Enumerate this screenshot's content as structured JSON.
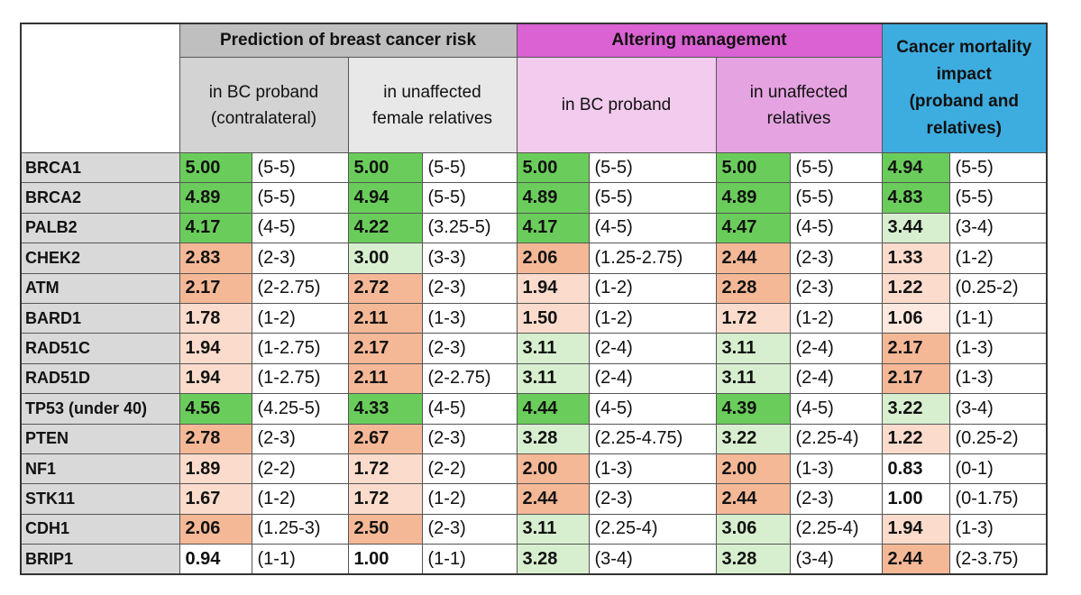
{
  "header": {
    "groups": [
      {
        "title": "Prediction of breast cancer risk",
        "subgroups": [
          {
            "lines": [
              "in BC proband",
              "(contralateral)"
            ]
          },
          {
            "lines": [
              "in unaffected",
              "female relatives"
            ]
          }
        ]
      },
      {
        "title": "Altering management",
        "subgroups": [
          {
            "lines": [
              "in BC proband"
            ]
          },
          {
            "lines": [
              "in unaffected",
              "relatives"
            ]
          }
        ]
      }
    ],
    "mortality": {
      "lines": [
        "Cancer mortality",
        "impact",
        "(proband and",
        "relatives)"
      ]
    }
  },
  "table": {
    "rows": [
      {
        "gene": "BRCA1",
        "values": [
          "5.00",
          "5.00",
          "5.00",
          "5.00",
          "4.94"
        ],
        "ranges": [
          "(5-5)",
          "(5-5)",
          "(5-5)",
          "(5-5)",
          "(5-5)"
        ],
        "colors": [
          "#6acd5b",
          "#6acd5b",
          "#6acd5b",
          "#6acd5b",
          "#6acd5b"
        ]
      },
      {
        "gene": "BRCA2",
        "values": [
          "4.89",
          "4.94",
          "4.89",
          "4.89",
          "4.83"
        ],
        "ranges": [
          "(5-5)",
          "(5-5)",
          "(5-5)",
          "(5-5)",
          "(5-5)"
        ],
        "colors": [
          "#6acd5b",
          "#6acd5b",
          "#6acd5b",
          "#6acd5b",
          "#6acd5b"
        ]
      },
      {
        "gene": "PALB2",
        "values": [
          "4.17",
          "4.22",
          "4.17",
          "4.47",
          "3.44"
        ],
        "ranges": [
          "(4-5)",
          "(3.25-5)",
          "(4-5)",
          "(4-5)",
          "(3-4)"
        ],
        "colors": [
          "#6acd5b",
          "#6acd5b",
          "#6acd5b",
          "#6acd5b",
          "#d7efcf"
        ]
      },
      {
        "gene": "CHEK2",
        "values": [
          "2.83",
          "3.00",
          "2.06",
          "2.44",
          "1.33"
        ],
        "ranges": [
          "(2-3)",
          "(3-3)",
          "(1.25-2.75)",
          "(2-3)",
          "(1-2)"
        ],
        "colors": [
          "#f5b896",
          "#d7efcf",
          "#f5b896",
          "#f5b896",
          "#fbdccc"
        ]
      },
      {
        "gene": "ATM",
        "values": [
          "2.17",
          "2.72",
          "1.94",
          "2.28",
          "1.22"
        ],
        "ranges": [
          "(2-2.75)",
          "(2-3)",
          "(1-2)",
          "(2-3)",
          "(0.25-2)"
        ],
        "colors": [
          "#f5b896",
          "#f5b896",
          "#fbdccc",
          "#f5b896",
          "#fbdccc"
        ]
      },
      {
        "gene": "BARD1",
        "values": [
          "1.78",
          "2.11",
          "1.50",
          "1.72",
          "1.06"
        ],
        "ranges": [
          "(1-2)",
          "(1-3)",
          "(1-2)",
          "(1-2)",
          "(1-1)"
        ],
        "colors": [
          "#fbdccc",
          "#f5b896",
          "#fbdccc",
          "#fbdccc",
          "#fde9df"
        ]
      },
      {
        "gene": "RAD51C",
        "values": [
          "1.94",
          "2.17",
          "3.11",
          "3.11",
          "2.17"
        ],
        "ranges": [
          "(1-2.75)",
          "(2-3)",
          "(2-4)",
          "(2-4)",
          "(1-3)"
        ],
        "colors": [
          "#fbdccc",
          "#f5b896",
          "#d7efcf",
          "#d7efcf",
          "#f5b896"
        ]
      },
      {
        "gene": "RAD51D",
        "values": [
          "1.94",
          "2.11",
          "3.11",
          "3.11",
          "2.17"
        ],
        "ranges": [
          "(1-2.75)",
          "(2-2.75)",
          "(2-4)",
          "(2-4)",
          "(1-3)"
        ],
        "colors": [
          "#fbdccc",
          "#f5b896",
          "#d7efcf",
          "#d7efcf",
          "#f5b896"
        ]
      },
      {
        "gene": "TP53 (under 40)",
        "values": [
          "4.56",
          "4.33",
          "4.44",
          "4.39",
          "3.22"
        ],
        "ranges": [
          "(4.25-5)",
          "(4-5)",
          "(4-5)",
          "(4-5)",
          "(3-4)"
        ],
        "colors": [
          "#6acd5b",
          "#6acd5b",
          "#6acd5b",
          "#6acd5b",
          "#d7efcf"
        ]
      },
      {
        "gene": "PTEN",
        "values": [
          "2.78",
          "2.67",
          "3.28",
          "3.22",
          "1.22"
        ],
        "ranges": [
          "(2-3)",
          "(2-3)",
          "(2.25-4.75)",
          "(2.25-4)",
          "(0.25-2)"
        ],
        "colors": [
          "#f5b896",
          "#f5b896",
          "#d7efcf",
          "#d7efcf",
          "#fbdccc"
        ]
      },
      {
        "gene": "NF1",
        "values": [
          "1.89",
          "1.72",
          "2.00",
          "2.00",
          "0.83"
        ],
        "ranges": [
          "(2-2)",
          "(2-2)",
          "(1-3)",
          "(1-3)",
          "(0-1)"
        ],
        "colors": [
          "#fbdccc",
          "#fbdccc",
          "#f5b896",
          "#f5b896",
          "#ffffff"
        ]
      },
      {
        "gene": "STK11",
        "values": [
          "1.67",
          "1.72",
          "2.44",
          "2.44",
          "1.00"
        ],
        "ranges": [
          "(1-2)",
          "(1-2)",
          "(2-3)",
          "(2-3)",
          "(0-1.75)"
        ],
        "colors": [
          "#fbdccc",
          "#fbdccc",
          "#f5b896",
          "#f5b896",
          "#ffffff"
        ]
      },
      {
        "gene": "CDH1",
        "values": [
          "2.06",
          "2.50",
          "3.11",
          "3.06",
          "1.94"
        ],
        "ranges": [
          "(1.25-3)",
          "(2-3)",
          "(2.25-4)",
          "(2.25-4)",
          "(1-3)"
        ],
        "colors": [
          "#f5b896",
          "#f5b896",
          "#d7efcf",
          "#d7efcf",
          "#fbdccc"
        ]
      },
      {
        "gene": "BRIP1",
        "values": [
          "0.94",
          "1.00",
          "3.28",
          "3.28",
          "2.44"
        ],
        "ranges": [
          "(1-1)",
          "(1-1)",
          "(3-4)",
          "(3-4)",
          "(2-3.75)"
        ],
        "colors": [
          "#ffffff",
          "#ffffff",
          "#d7efcf",
          "#d7efcf",
          "#f5b896"
        ]
      }
    ]
  }
}
